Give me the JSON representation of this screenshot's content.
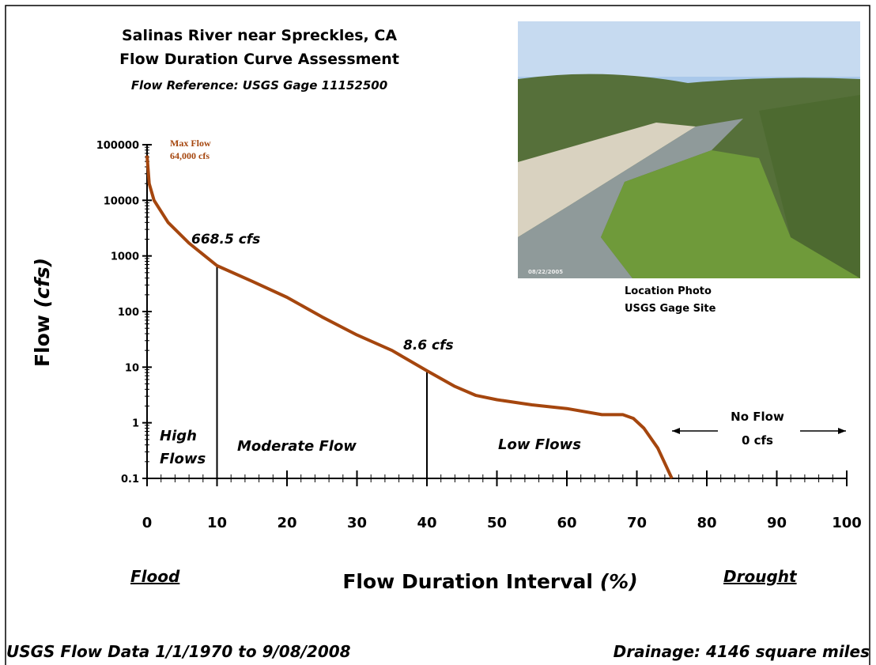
{
  "chart_data": {
    "type": "line",
    "title": [
      "Salinas River near Spreckles, CA",
      "Flow Duration Curve Assessment"
    ],
    "subtitle": "Flow Reference: USGS Gage  11152500",
    "ylabel": "Flow",
    "ylabel_unit": "(cfs)",
    "xlabel": "Flow Duration Interval",
    "xlabel_unit": "(%)",
    "x": [
      0,
      0.3,
      1,
      3,
      6,
      10,
      15,
      20,
      25,
      30,
      35,
      40,
      44,
      47,
      50,
      55,
      60,
      65,
      68,
      69.5,
      71,
      73,
      75
    ],
    "values": [
      64000,
      20000,
      10000,
      4000,
      1700,
      668.5,
      350,
      180,
      80,
      38,
      20,
      8.6,
      4.5,
      3.1,
      2.6,
      2.1,
      1.8,
      1.4,
      1.4,
      1.2,
      0.8,
      0.35,
      0.1
    ],
    "color": "#a5460e",
    "xlim": [
      0,
      100
    ],
    "xticks": [
      0,
      10,
      20,
      30,
      40,
      50,
      60,
      70,
      80,
      90,
      100
    ],
    "ylim": [
      0.1,
      100000
    ],
    "yticks": [
      0.1,
      1,
      10,
      100,
      1000,
      10000,
      100000
    ],
    "ylog": true,
    "grid": false,
    "annotations": [
      "Max Flow",
      "64,000 cfs",
      "668.5 cfs",
      "8.6 cfs",
      "High",
      "Flows",
      "Moderate Flow",
      "Low Flows",
      "No Flow",
      "0 cfs",
      "Flood",
      "Drought"
    ]
  },
  "photo": {
    "date": "08/22/2005",
    "caption": [
      "Location Photo",
      "USGS Gage Site"
    ]
  },
  "footer": {
    "left": "USGS Flow Data 1/1/1970 to 9/08/2008",
    "right": "Drainage: 4146 square miles"
  }
}
